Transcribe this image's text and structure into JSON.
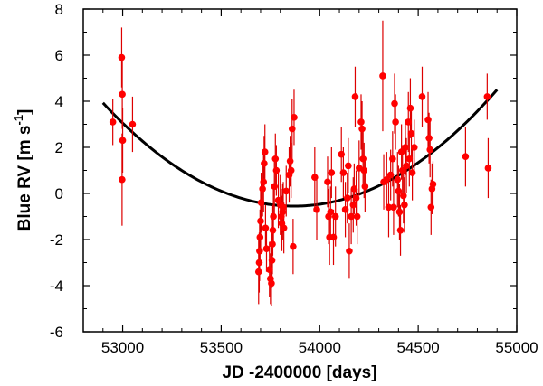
{
  "chart_data": {
    "type": "scatter",
    "title": "",
    "xlabel": "JD -2400000 [days]",
    "ylabel_main": "Blue RV [m s",
    "ylabel_exp": "-1",
    "ylabel_close": "]",
    "xlim": [
      52800,
      55000
    ],
    "ylim": [
      -6,
      8
    ],
    "xticks": [
      53000,
      53500,
      54000,
      54500,
      55000
    ],
    "yticks": [
      -6,
      -4,
      -2,
      0,
      2,
      4,
      6,
      8
    ],
    "grid": false,
    "legend": "none",
    "colors": {
      "points": "#ff0000",
      "errorbars": "#dd0000",
      "fit": "#000000"
    },
    "series": [
      {
        "name": "Blue RV",
        "kind": "scatter-errorbars",
        "points": [
          {
            "x": 52950,
            "y": 3.1,
            "err": 1.0
          },
          {
            "x": 52995,
            "y": 5.9,
            "err": 1.3
          },
          {
            "x": 52998,
            "y": 4.3,
            "err": 1.5
          },
          {
            "x": 53000,
            "y": 2.3,
            "err": 1.4
          },
          {
            "x": 52997,
            "y": 0.6,
            "err": 2.0
          },
          {
            "x": 53050,
            "y": 3.0,
            "err": 1.2
          },
          {
            "x": 53690,
            "y": -3.4,
            "err": 1.4
          },
          {
            "x": 53693,
            "y": -3.0,
            "err": 1.3
          },
          {
            "x": 53695,
            "y": -2.5,
            "err": 1.3
          },
          {
            "x": 53697,
            "y": -1.9,
            "err": 1.2
          },
          {
            "x": 53700,
            "y": -1.2,
            "err": 1.4
          },
          {
            "x": 53703,
            "y": -0.4,
            "err": 1.3
          },
          {
            "x": 53710,
            "y": 0.2,
            "err": 1.2
          },
          {
            "x": 53715,
            "y": 0.5,
            "err": 1.3
          },
          {
            "x": 53718,
            "y": 1.3,
            "err": 1.2
          },
          {
            "x": 53722,
            "y": 1.8,
            "err": 1.2
          },
          {
            "x": 53725,
            "y": -1.5,
            "err": 1.0
          },
          {
            "x": 53730,
            "y": -2.4,
            "err": 1.0
          },
          {
            "x": 53745,
            "y": -3.3,
            "err": 1.2
          },
          {
            "x": 53750,
            "y": -3.7,
            "err": 1.1
          },
          {
            "x": 53755,
            "y": -3.9,
            "err": 1.0
          },
          {
            "x": 53758,
            "y": -2.9,
            "err": 1.2
          },
          {
            "x": 53760,
            "y": -2.2,
            "err": 1.3
          },
          {
            "x": 53762,
            "y": -1.6,
            "err": 1.1
          },
          {
            "x": 53765,
            "y": -1.0,
            "err": 1.2
          },
          {
            "x": 53770,
            "y": 0.3,
            "err": 1.2
          },
          {
            "x": 53775,
            "y": 1.5,
            "err": 1.1
          },
          {
            "x": 53780,
            "y": 1.0,
            "err": 1.1
          },
          {
            "x": 53790,
            "y": -0.3,
            "err": 1.2
          },
          {
            "x": 53800,
            "y": -0.5,
            "err": 1.3
          },
          {
            "x": 53805,
            "y": -1.0,
            "err": 1.2
          },
          {
            "x": 53808,
            "y": -1.3,
            "err": 1.2
          },
          {
            "x": 53812,
            "y": -0.8,
            "err": 1.2
          },
          {
            "x": 53815,
            "y": -0.6,
            "err": 1.1
          },
          {
            "x": 53818,
            "y": -1.5,
            "err": 1.1
          },
          {
            "x": 53830,
            "y": 0.1,
            "err": 1.1
          },
          {
            "x": 53845,
            "y": 0.8,
            "err": 1.2
          },
          {
            "x": 53850,
            "y": 1.4,
            "err": 1.1
          },
          {
            "x": 53855,
            "y": 1.0,
            "err": 1.2
          },
          {
            "x": 53860,
            "y": 2.8,
            "err": 1.3
          },
          {
            "x": 53870,
            "y": 3.3,
            "err": 1.2
          },
          {
            "x": 53865,
            "y": -2.3,
            "err": 1.2
          },
          {
            "x": 53975,
            "y": 0.7,
            "err": 1.3
          },
          {
            "x": 53985,
            "y": -0.7,
            "err": 1.3
          },
          {
            "x": 54040,
            "y": 0.5,
            "err": 1.1
          },
          {
            "x": 54045,
            "y": -1.0,
            "err": 1.2
          },
          {
            "x": 54050,
            "y": -1.9,
            "err": 1.2
          },
          {
            "x": 54055,
            "y": -0.8,
            "err": 1.1
          },
          {
            "x": 54060,
            "y": 0.9,
            "err": 1.1
          },
          {
            "x": 54070,
            "y": -1.9,
            "err": 1.2
          },
          {
            "x": 54080,
            "y": -1.0,
            "err": 1.3
          },
          {
            "x": 54110,
            "y": 1.7,
            "err": 1.2
          },
          {
            "x": 54120,
            "y": 0.9,
            "err": 1.1
          },
          {
            "x": 54130,
            "y": -0.7,
            "err": 1.2
          },
          {
            "x": 54140,
            "y": -0.2,
            "err": 1.1
          },
          {
            "x": 54145,
            "y": 1.2,
            "err": 1.2
          },
          {
            "x": 54150,
            "y": -2.5,
            "err": 1.2
          },
          {
            "x": 54160,
            "y": -1.0,
            "err": 1.2
          },
          {
            "x": 54170,
            "y": -0.5,
            "err": 1.2
          },
          {
            "x": 54175,
            "y": 0.2,
            "err": 1.1
          },
          {
            "x": 54180,
            "y": 4.2,
            "err": 1.3
          },
          {
            "x": 54185,
            "y": -0.2,
            "err": 1.2
          },
          {
            "x": 54190,
            "y": -1.0,
            "err": 1.2
          },
          {
            "x": 54200,
            "y": 1.1,
            "err": 1.2
          },
          {
            "x": 54210,
            "y": 3.1,
            "err": 1.2
          },
          {
            "x": 54215,
            "y": 2.8,
            "err": 1.2
          },
          {
            "x": 54220,
            "y": 1.5,
            "err": 1.3
          },
          {
            "x": 54225,
            "y": 1.0,
            "err": 1.2
          },
          {
            "x": 54230,
            "y": 0.3,
            "err": 1.1
          },
          {
            "x": 54320,
            "y": 5.1,
            "err": 2.4
          },
          {
            "x": 54325,
            "y": 0.5,
            "err": 1.2
          },
          {
            "x": 54340,
            "y": 0.6,
            "err": 1.2
          },
          {
            "x": 54350,
            "y": -0.6,
            "err": 1.3
          },
          {
            "x": 54360,
            "y": 0.8,
            "err": 1.1
          },
          {
            "x": 54370,
            "y": 1.5,
            "err": 1.2
          },
          {
            "x": 54375,
            "y": -0.6,
            "err": 1.2
          },
          {
            "x": 54380,
            "y": 3.9,
            "err": 1.3
          },
          {
            "x": 54385,
            "y": 3.1,
            "err": 1.2
          },
          {
            "x": 54395,
            "y": 0.6,
            "err": 1.2
          },
          {
            "x": 54400,
            "y": 0.1,
            "err": 1.1
          },
          {
            "x": 54405,
            "y": -0.8,
            "err": 1.2
          },
          {
            "x": 54410,
            "y": -1.6,
            "err": 1.1
          },
          {
            "x": 54415,
            "y": 1.8,
            "err": 1.2
          },
          {
            "x": 54420,
            "y": 1.0,
            "err": 1.1
          },
          {
            "x": 54425,
            "y": -0.1,
            "err": 1.2
          },
          {
            "x": 54430,
            "y": -0.5,
            "err": 1.2
          },
          {
            "x": 54435,
            "y": 2.0,
            "err": 1.2
          },
          {
            "x": 54440,
            "y": 1.2,
            "err": 1.2
          },
          {
            "x": 54450,
            "y": 3.1,
            "err": 1.3
          },
          {
            "x": 54455,
            "y": 1.5,
            "err": 1.2
          },
          {
            "x": 54460,
            "y": 3.7,
            "err": 1.3
          },
          {
            "x": 54465,
            "y": 2.6,
            "err": 1.2
          },
          {
            "x": 54470,
            "y": 0.9,
            "err": 1.2
          },
          {
            "x": 54480,
            "y": 2.0,
            "err": 1.2
          },
          {
            "x": 54520,
            "y": 4.2,
            "err": 1.3
          },
          {
            "x": 54550,
            "y": 3.2,
            "err": 1.2
          },
          {
            "x": 54555,
            "y": 2.4,
            "err": 1.1
          },
          {
            "x": 54560,
            "y": 1.9,
            "err": 1.2
          },
          {
            "x": 54565,
            "y": -0.6,
            "err": 1.2
          },
          {
            "x": 54570,
            "y": 0.2,
            "err": 1.1
          },
          {
            "x": 54575,
            "y": 0.4,
            "err": 1.0
          },
          {
            "x": 54740,
            "y": 1.6,
            "err": 1.3
          },
          {
            "x": 54850,
            "y": 4.2,
            "err": 1.0
          },
          {
            "x": 54855,
            "y": 1.1,
            "err": 1.3
          }
        ]
      },
      {
        "name": "Quadratic fit",
        "kind": "curve",
        "vertex_x": 53870,
        "vertex_y": -0.55,
        "anchor_x": 54900,
        "anchor_y": 4.5,
        "x_range": [
          52900,
          54900
        ]
      }
    ]
  }
}
